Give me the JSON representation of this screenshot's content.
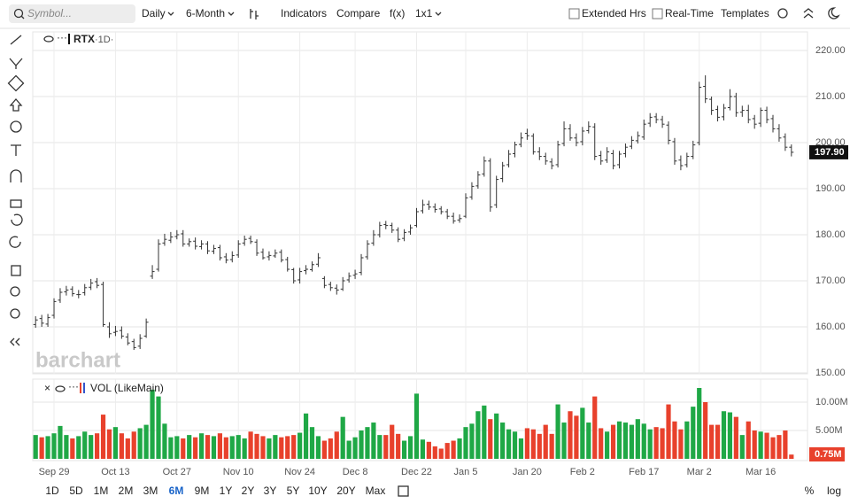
{
  "toolbar": {
    "search_placeholder": "Symbol...",
    "menus": [
      "Daily",
      "6-Month",
      "Indicators",
      "Compare",
      "f(x)",
      "1x1"
    ],
    "checkboxes": [
      "Extended Hrs",
      "Real-Time"
    ],
    "templates": "Templates"
  },
  "chart_data": [
    {
      "type": "ohlc",
      "symbol": "RTX",
      "interval": "·1D·",
      "watermark": "barchart",
      "color": "#333333",
      "grid": true,
      "last_value_label": "197.90",
      "categories": [
        null,
        null,
        null,
        "Sep 29",
        null,
        null,
        null,
        null,
        null,
        null,
        null,
        null,
        null,
        "Oct 13",
        null,
        null,
        null,
        null,
        null,
        null,
        null,
        null,
        null,
        "Oct 27",
        null,
        null,
        null,
        null,
        null,
        null,
        null,
        null,
        null,
        "Nov 10",
        null,
        null,
        null,
        null,
        null,
        null,
        null,
        null,
        null,
        "Nov 24",
        null,
        null,
        null,
        null,
        null,
        null,
        null,
        null,
        "Dec 8",
        null,
        null,
        null,
        null,
        null,
        null,
        null,
        null,
        null,
        "Dec 22",
        null,
        null,
        null,
        null,
        null,
        null,
        null,
        "Jan 5",
        null,
        null,
        null,
        null,
        null,
        null,
        null,
        null,
        null,
        "Jan 20",
        null,
        null,
        null,
        null,
        null,
        null,
        null,
        null,
        "Feb 2",
        null,
        null,
        null,
        null,
        null,
        null,
        null,
        null,
        null,
        "Feb 17",
        null,
        null,
        null,
        null,
        null,
        null,
        null,
        null,
        "Mar 2",
        null,
        null,
        null,
        null,
        null,
        null,
        null,
        null,
        null,
        "Mar 16",
        null,
        null,
        null,
        null,
        null
      ],
      "open": [
        160.5,
        161.8,
        160.6,
        162.5,
        165.8,
        167.6,
        168.2,
        167.0,
        167.4,
        168.6,
        169.8,
        169.2,
        160.0,
        158.8,
        159.2,
        157.8,
        156.8,
        155.8,
        158.0,
        171.0,
        172.5,
        178.2,
        178.8,
        179.6,
        180.2,
        178.0,
        178.6,
        177.4,
        178.0,
        176.4,
        177.2,
        175.2,
        174.6,
        175.6,
        178.2,
        179.2,
        178.4,
        176.2,
        175.2,
        175.4,
        176.2,
        174.6,
        172.4,
        170.2,
        172.2,
        172.4,
        173.6,
        170.5,
        169.2,
        168.4,
        168.2,
        170.2,
        171.2,
        171.8,
        175.2,
        178.2,
        180.0,
        182.2,
        182.0,
        181.0,
        179.2,
        180.6,
        182.0,
        185.2,
        186.6,
        186.0,
        185.6,
        185.0,
        184.0,
        183.2,
        184.0,
        188.2,
        190.6,
        193.2,
        196.0,
        186.5,
        192.2,
        195.2,
        197.6,
        199.6,
        202.0,
        201.4,
        198.0,
        197.0,
        195.8,
        195.2,
        199.8,
        203.0,
        201.0,
        200.2,
        202.6,
        203.4,
        197.2,
        196.2,
        197.6,
        195.2,
        197.6,
        199.2,
        200.4,
        201.2,
        204.2,
        205.6,
        205.0,
        203.8,
        200.2,
        196.2,
        195.2,
        197.0,
        200.0,
        212.2,
        209.4,
        207.2,
        205.6,
        207.6,
        210.0,
        206.6,
        207.0,
        205.2,
        204.2,
        207.0,
        205.2,
        203.0,
        201.2,
        199.0
      ],
      "high": [
        162.3,
        162.6,
        162.8,
        166.2,
        168.4,
        168.9,
        168.8,
        168.0,
        169.3,
        170.4,
        170.6,
        169.8,
        161.0,
        160.2,
        160.1,
        158.6,
        157.4,
        158.4,
        161.8,
        173.4,
        179.0,
        180.2,
        180.6,
        181.0,
        181.0,
        179.2,
        179.4,
        178.8,
        178.6,
        177.8,
        177.8,
        176.0,
        176.4,
        178.8,
        179.8,
        179.8,
        179.0,
        177.0,
        176.4,
        176.8,
        176.8,
        175.2,
        172.8,
        172.8,
        173.4,
        174.2,
        176.0,
        171.0,
        169.8,
        169.2,
        170.8,
        171.8,
        172.4,
        175.8,
        178.8,
        181.0,
        182.8,
        183.0,
        182.6,
        181.6,
        181.2,
        182.2,
        185.8,
        187.6,
        187.4,
        186.8,
        186.2,
        185.6,
        184.8,
        184.4,
        189.0,
        191.4,
        193.8,
        197.0,
        196.6,
        192.8,
        195.8,
        198.4,
        200.2,
        202.2,
        203.0,
        202.0,
        199.0,
        197.8,
        196.6,
        200.4,
        204.6,
        204.0,
        202.0,
        203.4,
        204.6,
        204.2,
        198.2,
        199.0,
        198.4,
        198.2,
        199.8,
        201.4,
        202.4,
        205.0,
        206.4,
        206.4,
        205.8,
        204.6,
        201.0,
        197.2,
        197.8,
        200.4,
        213.2,
        214.6,
        210.0,
        208.0,
        208.4,
        211.6,
        210.8,
        208.0,
        208.2,
        206.0,
        207.6,
        207.8,
        206.0,
        204.0,
        202.0,
        199.6
      ],
      "low": [
        159.8,
        160.0,
        160.0,
        161.8,
        165.2,
        166.8,
        166.6,
        166.2,
        166.8,
        168.0,
        168.4,
        160.0,
        157.6,
        158.0,
        157.4,
        156.0,
        155.0,
        155.2,
        157.6,
        170.4,
        172.0,
        177.6,
        178.2,
        179.0,
        177.4,
        177.4,
        176.8,
        176.8,
        175.8,
        175.8,
        174.4,
        173.8,
        174.0,
        175.0,
        177.6,
        178.0,
        175.4,
        174.6,
        174.4,
        175.0,
        174.0,
        172.0,
        169.4,
        169.4,
        171.4,
        172.0,
        173.0,
        168.4,
        167.8,
        167.0,
        167.8,
        169.6,
        170.4,
        171.2,
        174.6,
        177.6,
        179.4,
        181.2,
        180.4,
        178.4,
        178.6,
        180.0,
        181.6,
        184.6,
        185.4,
        184.8,
        184.4,
        183.4,
        182.4,
        182.6,
        183.6,
        187.6,
        190.0,
        192.6,
        185.0,
        185.8,
        191.4,
        194.6,
        196.8,
        199.0,
        200.6,
        197.4,
        196.2,
        195.2,
        194.2,
        194.6,
        199.2,
        200.4,
        199.2,
        199.4,
        202.0,
        196.2,
        195.2,
        195.6,
        194.2,
        194.4,
        196.8,
        198.6,
        199.8,
        200.6,
        203.4,
        204.2,
        203.2,
        199.6,
        195.2,
        194.0,
        194.6,
        196.4,
        199.4,
        208.6,
        206.0,
        204.6,
        204.8,
        207.0,
        205.6,
        205.6,
        204.2,
        203.0,
        203.4,
        204.2,
        202.2,
        200.2,
        198.2,
        197.0
      ],
      "close": [
        161.5,
        160.8,
        162.0,
        165.5,
        167.5,
        168.0,
        167.2,
        167.0,
        168.5,
        169.5,
        169.0,
        160.5,
        158.5,
        159.0,
        158.0,
        156.5,
        155.5,
        157.5,
        161.0,
        172.0,
        178.0,
        179.0,
        179.5,
        180.0,
        178.0,
        178.5,
        177.5,
        178.0,
        176.5,
        177.0,
        175.0,
        174.5,
        175.5,
        178.0,
        179.0,
        178.5,
        176.0,
        175.0,
        175.5,
        176.0,
        174.5,
        172.5,
        170.0,
        172.0,
        172.5,
        173.5,
        175.0,
        169.0,
        168.5,
        168.0,
        170.0,
        171.0,
        171.5,
        175.0,
        178.0,
        180.0,
        182.0,
        182.0,
        181.0,
        179.0,
        180.5,
        181.5,
        185.0,
        186.5,
        186.0,
        185.5,
        185.0,
        184.0,
        183.0,
        183.5,
        188.0,
        190.5,
        193.0,
        196.0,
        186.0,
        192.0,
        195.0,
        197.5,
        199.5,
        201.0,
        201.5,
        198.0,
        197.0,
        196.0,
        195.0,
        199.5,
        203.0,
        201.0,
        200.0,
        202.5,
        203.5,
        197.0,
        196.0,
        198.0,
        195.0,
        197.5,
        199.0,
        200.5,
        201.5,
        204.0,
        205.5,
        205.0,
        204.0,
        200.5,
        196.0,
        195.0,
        197.0,
        199.5,
        212.0,
        209.5,
        207.0,
        205.5,
        207.5,
        210.0,
        206.5,
        207.0,
        205.0,
        204.0,
        207.0,
        205.0,
        203.0,
        201.0,
        199.0,
        197.9
      ],
      "ylim": [
        150,
        223.65
      ],
      "yticks": [
        {
          "value": 150,
          "label": "150.00"
        },
        {
          "value": 160,
          "label": "160.00"
        },
        {
          "value": 170,
          "label": "170.00"
        },
        {
          "value": 180,
          "label": "180.00"
        },
        {
          "value": 190,
          "label": "190.00"
        },
        {
          "value": 200,
          "label": "200.00"
        },
        {
          "value": 210,
          "label": "210.00"
        },
        {
          "value": 220,
          "label": "220.00"
        }
      ]
    },
    {
      "type": "bar",
      "title": "VOL (LikeMain)",
      "up_color": "#1fa846",
      "down_color": "#e8412c",
      "last_value_label": "0.75M",
      "values": [
        4.2,
        3.8,
        4.0,
        4.5,
        5.8,
        4.2,
        3.6,
        4.0,
        4.8,
        4.2,
        4.5,
        7.8,
        5.2,
        5.6,
        4.5,
        3.6,
        4.8,
        5.4,
        6.0,
        12.2,
        11.0,
        6.2,
        3.8,
        4.0,
        3.6,
        4.2,
        3.8,
        4.5,
        4.2,
        4.0,
        4.5,
        3.8,
        4.0,
        4.2,
        3.6,
        4.8,
        4.4,
        4.0,
        3.6,
        4.2,
        3.8,
        4.0,
        4.2,
        4.6,
        8.0,
        5.6,
        4.0,
        3.2,
        3.6,
        4.8,
        7.4,
        3.2,
        3.8,
        5.0,
        5.6,
        6.4,
        4.2,
        4.2,
        6.0,
        4.4,
        3.2,
        4.0,
        11.5,
        3.4,
        3.0,
        2.2,
        1.8,
        2.8,
        3.2,
        3.6,
        5.6,
        6.2,
        8.4,
        9.4,
        7.0,
        8.0,
        6.4,
        5.2,
        4.8,
        3.6,
        5.4,
        5.2,
        4.4,
        6.0,
        4.4,
        9.6,
        6.4,
        8.4,
        7.6,
        9.0,
        6.4,
        11.0,
        5.4,
        4.8,
        6.0,
        6.6,
        6.4,
        6.0,
        7.0,
        6.2,
        5.2,
        5.6,
        5.4,
        9.6,
        6.6,
        5.2,
        6.6,
        9.2,
        12.5,
        10.0,
        6.0,
        6.0,
        8.4,
        8.2,
        7.4,
        4.2,
        6.6,
        5.0,
        4.8,
        4.6,
        3.8,
        4.2,
        5.0,
        0.75
      ],
      "ylim": [
        0,
        13.75
      ],
      "yticks": [
        {
          "value": 5,
          "label": "5.00M"
        },
        {
          "value": 10,
          "label": "10.00M"
        }
      ]
    }
  ],
  "ranges": [
    "1D",
    "5D",
    "1M",
    "2M",
    "3M",
    "6M",
    "9M",
    "1Y",
    "2Y",
    "3Y",
    "5Y",
    "10Y",
    "20Y",
    "Max"
  ],
  "active_range": 5,
  "scale_options": [
    "%",
    "log"
  ]
}
